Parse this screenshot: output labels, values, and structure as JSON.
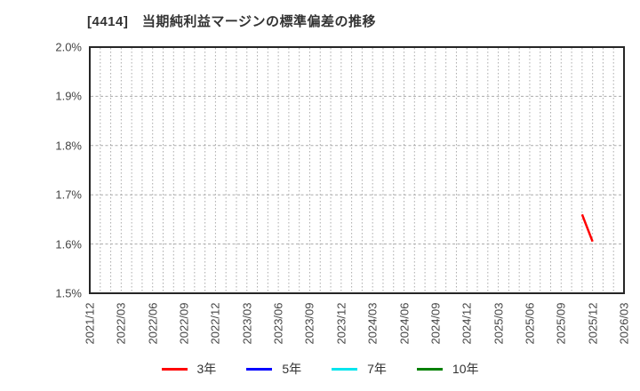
{
  "title": "[4414]　当期純利益マージンの標準偏差の推移",
  "chart_data": {
    "type": "line",
    "title": "[4414] 当期純利益マージンの標準偏差の推移",
    "x_axis": {
      "start": "2021/12",
      "end": "2026/03",
      "tick_labels": [
        "2021/12",
        "2022/03",
        "2022/06",
        "2022/09",
        "2022/12",
        "2023/03",
        "2023/06",
        "2023/09",
        "2023/12",
        "2024/03",
        "2024/06",
        "2024/09",
        "2024/12",
        "2025/03",
        "2025/06",
        "2025/09",
        "2025/12",
        "2026/03"
      ],
      "label_interval_months": 3,
      "minor_gridline_interval_months": 1
    },
    "y_axis": {
      "min": 1.5,
      "max": 2.0,
      "unit": "%",
      "ticks": [
        {
          "label": "2.0%",
          "value": 2.0
        },
        {
          "label": "1.9%",
          "value": 1.9
        },
        {
          "label": "1.8%",
          "value": 1.8
        },
        {
          "label": "1.7%",
          "value": 1.7
        },
        {
          "label": "1.6%",
          "value": 1.6
        },
        {
          "label": "1.5%",
          "value": 1.5
        }
      ]
    },
    "grid": {
      "on": true,
      "color": "#aaaaaa",
      "style": "dotted"
    },
    "legend_position": "bottom",
    "series": [
      {
        "name": "3年",
        "color": "#ff0000",
        "points": [
          {
            "date": "2025/11",
            "value": 1.66
          },
          {
            "date": "2025/12",
            "value": 1.605
          }
        ]
      },
      {
        "name": "5年",
        "color": "#0000ff",
        "points": []
      },
      {
        "name": "7年",
        "color": "#00e5ee",
        "points": []
      },
      {
        "name": "10年",
        "color": "#008000",
        "points": []
      }
    ]
  },
  "legend": {
    "items": [
      {
        "label": "3年",
        "color": "#ff0000"
      },
      {
        "label": "5年",
        "color": "#0000ff"
      },
      {
        "label": "7年",
        "color": "#00e5ee"
      },
      {
        "label": "10年",
        "color": "#008000"
      }
    ]
  }
}
